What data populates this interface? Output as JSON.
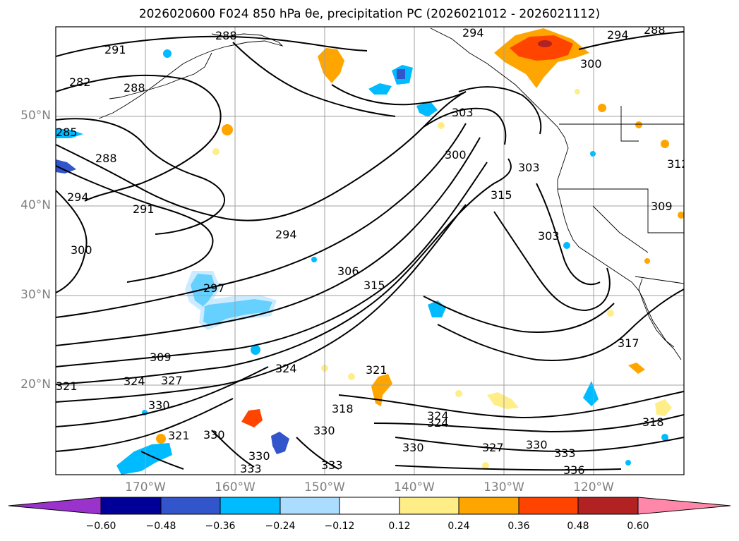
{
  "title_text": "2026020600 F024 850 hPa θe, precipitation PC (2026021012 - 2026021112)",
  "lat_labels": [
    "50°N",
    "40°N",
    "30°N",
    "20°N"
  ],
  "lon_labels": [
    "170°W",
    "160°W",
    "150°W",
    "140°W",
    "130°W",
    "120°W"
  ],
  "contour_labels": [
    "291",
    "288",
    "282",
    "288",
    "285",
    "288",
    "294",
    "291",
    "300",
    "294",
    "297",
    "309",
    "321",
    "324",
    "327",
    "330",
    "321",
    "330",
    "324",
    "330",
    "333",
    "330",
    "333",
    "318",
    "321",
    "324",
    "306",
    "315",
    "294",
    "303",
    "300",
    "303",
    "315",
    "303",
    "309",
    "300",
    "294",
    "288",
    "317",
    "318",
    "324",
    "327",
    "330",
    "333",
    "336",
    "330",
    "312"
  ],
  "colorbar": {
    "ticks": [
      "−0.60",
      "−0.48",
      "−0.36",
      "−0.24",
      "−0.12",
      "0.12",
      "0.24",
      "0.36",
      "0.48",
      "0.60"
    ],
    "colors": [
      "#9933cc",
      "#000099",
      "#3355cc",
      "#00bbff",
      "#aaddff",
      "#ffffff",
      "#ffee88",
      "#ffa500",
      "#ff4400",
      "#b22222",
      "#ff88aa"
    ]
  }
}
